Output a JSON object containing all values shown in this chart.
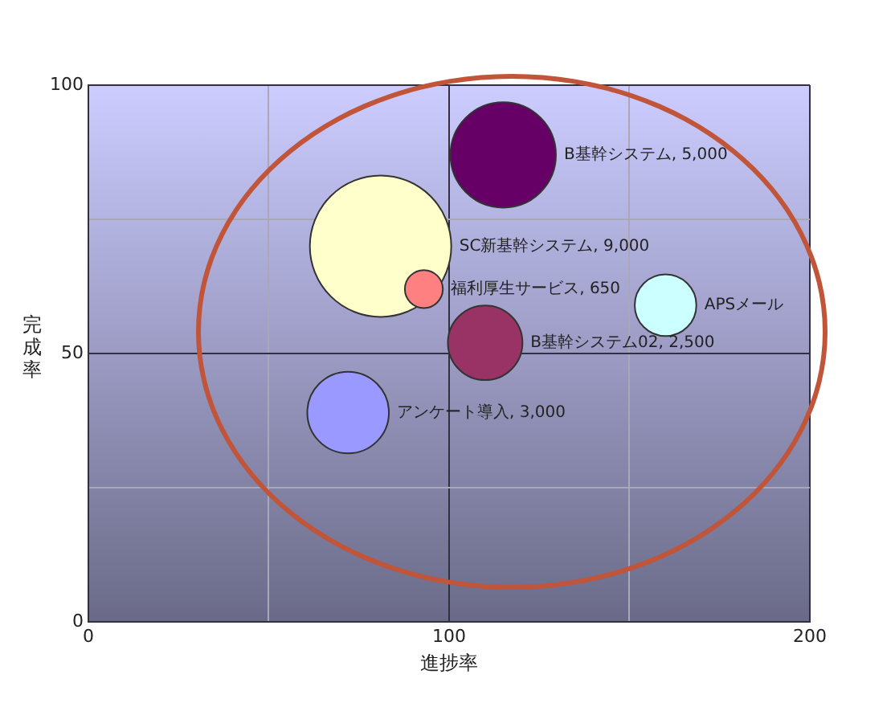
{
  "chart_data": {
    "type": "bubble",
    "xlabel": "進捗率",
    "ylabel": "完成率",
    "series": [
      {
        "name": "B基幹システム, 5,000",
        "color": "#660066",
        "x": [
          115
        ],
        "values": [
          87
        ],
        "sizes": [
          0.556
        ]
      },
      {
        "name": "SC新基幹システム, 9,000",
        "color": "#ffffcc",
        "x": [
          81
        ],
        "values": [
          70
        ],
        "sizes": [
          1
        ]
      },
      {
        "name": "福利厚生サービス, 650",
        "color": "#ff8080",
        "x": [
          93
        ],
        "values": [
          62
        ],
        "sizes": [
          0.072
        ]
      },
      {
        "name": "APSメール",
        "color": "#ccffff",
        "x": [
          160
        ],
        "values": [
          59
        ],
        "sizes": [
          0.19
        ]
      },
      {
        "name": "B基幹システム02, 2,500",
        "color": "#993366",
        "x": [
          110
        ],
        "values": [
          52
        ],
        "sizes": [
          0.278
        ]
      },
      {
        "name": "アンケート導入, 3,000",
        "color": "#9999ff",
        "x": [
          72
        ],
        "values": [
          39
        ],
        "sizes": [
          0.333
        ]
      }
    ],
    "xlim": [
      0,
      200
    ],
    "xticks": [
      0,
      {
        "value": 50,
        "label": null
      },
      100,
      {
        "value": 150,
        "label": null
      },
      200
    ],
    "ylim": [
      0,
      100
    ],
    "yticks": [
      0,
      {
        "value": 25,
        "label": null
      },
      50,
      {
        "value": 75,
        "label": null
      },
      100
    ],
    "grid": true,
    "legend": false
  }
}
